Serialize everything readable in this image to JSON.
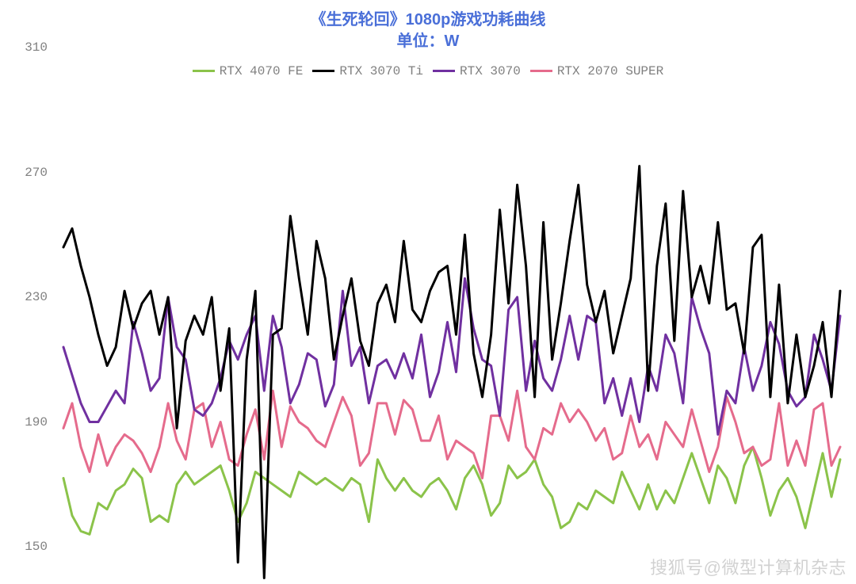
{
  "title": {
    "line1": "《生死轮回》1080p游戏功耗曲线",
    "line2": "单位：W",
    "color": "#4a6fd8",
    "fontsize": 20
  },
  "watermark": "搜狐号@微型计算机杂志",
  "chart": {
    "type": "line",
    "background_color": "#ffffff",
    "ylim": [
      150,
      310
    ],
    "yticks": [
      150,
      190,
      230,
      270,
      310
    ],
    "ytick_color": "#808080",
    "ytick_fontsize": 16,
    "x_count": 90,
    "line_width": 3,
    "legend": {
      "position": "top-center",
      "fontsize": 16,
      "font_family": "monospace",
      "label_color": "#808080",
      "items": [
        {
          "id": "rtx4070fe",
          "label": "RTX 4070 FE",
          "color": "#8bc34a"
        },
        {
          "id": "rtx3070ti",
          "label": "RTX 3070 Ti",
          "color": "#000000"
        },
        {
          "id": "rtx3070",
          "label": "RTX 3070",
          "color": "#7030a0"
        },
        {
          "id": "rtx2070super",
          "label": "RTX 2070 SUPER",
          "color": "#e56b8c"
        }
      ]
    },
    "series": {
      "rtx4070fe": {
        "color": "#8bc34a",
        "values": [
          172,
          160,
          155,
          154,
          164,
          162,
          168,
          170,
          175,
          172,
          158,
          160,
          158,
          170,
          174,
          170,
          172,
          174,
          176,
          168,
          158,
          164,
          174,
          172,
          170,
          168,
          166,
          174,
          172,
          170,
          172,
          170,
          168,
          172,
          170,
          158,
          178,
          172,
          168,
          172,
          168,
          166,
          170,
          172,
          168,
          162,
          172,
          176,
          170,
          160,
          164,
          176,
          172,
          174,
          178,
          170,
          166,
          156,
          158,
          164,
          162,
          168,
          166,
          164,
          174,
          168,
          162,
          170,
          162,
          168,
          164,
          172,
          180,
          172,
          164,
          176,
          172,
          164,
          176,
          182,
          172,
          160,
          168,
          172,
          166,
          156,
          168,
          180,
          166,
          178
        ]
      },
      "rtx3070ti": {
        "color": "#000000",
        "values": [
          246,
          252,
          240,
          230,
          218,
          208,
          214,
          232,
          220,
          228,
          232,
          218,
          230,
          188,
          216,
          224,
          218,
          230,
          200,
          220,
          145,
          210,
          232,
          140,
          218,
          220,
          256,
          236,
          218,
          248,
          236,
          210,
          224,
          236,
          216,
          208,
          228,
          234,
          222,
          248,
          226,
          222,
          232,
          238,
          240,
          218,
          250,
          212,
          198,
          218,
          258,
          228,
          266,
          240,
          198,
          254,
          210,
          228,
          248,
          266,
          234,
          222,
          232,
          212,
          224,
          236,
          272,
          200,
          240,
          260,
          216,
          264,
          230,
          240,
          228,
          254,
          226,
          228,
          212,
          246,
          250,
          198,
          234,
          196,
          218,
          198,
          208,
          222,
          198,
          232
        ]
      },
      "rtx3070": {
        "color": "#7030a0",
        "values": [
          214,
          205,
          196,
          190,
          190,
          195,
          200,
          196,
          222,
          212,
          200,
          204,
          230,
          214,
          210,
          194,
          192,
          196,
          204,
          216,
          210,
          218,
          224,
          200,
          224,
          214,
          196,
          202,
          212,
          210,
          195,
          202,
          232,
          208,
          214,
          196,
          208,
          210,
          204,
          212,
          204,
          218,
          198,
          206,
          222,
          206,
          236,
          220,
          210,
          208,
          192,
          226,
          230,
          200,
          216,
          204,
          200,
          210,
          224,
          210,
          224,
          222,
          196,
          204,
          192,
          204,
          190,
          208,
          200,
          218,
          212,
          196,
          230,
          220,
          212,
          186,
          200,
          196,
          214,
          200,
          208,
          222,
          215,
          200,
          195,
          198,
          218,
          210,
          200,
          224
        ]
      },
      "rtx2070super": {
        "color": "#e56b8c",
        "values": [
          188,
          196,
          182,
          174,
          186,
          176,
          182,
          186,
          184,
          180,
          174,
          182,
          196,
          184,
          178,
          194,
          196,
          182,
          190,
          178,
          176,
          186,
          194,
          178,
          200,
          182,
          195,
          190,
          188,
          184,
          182,
          190,
          198,
          192,
          176,
          180,
          196,
          196,
          186,
          197,
          194,
          184,
          184,
          192,
          178,
          184,
          182,
          180,
          172,
          192,
          192,
          184,
          200,
          182,
          178,
          188,
          186,
          196,
          190,
          194,
          190,
          184,
          188,
          178,
          180,
          192,
          182,
          186,
          178,
          190,
          186,
          182,
          194,
          184,
          174,
          182,
          198,
          190,
          180,
          182,
          176,
          178,
          196,
          176,
          184,
          176,
          194,
          196,
          176,
          182
        ]
      }
    }
  }
}
